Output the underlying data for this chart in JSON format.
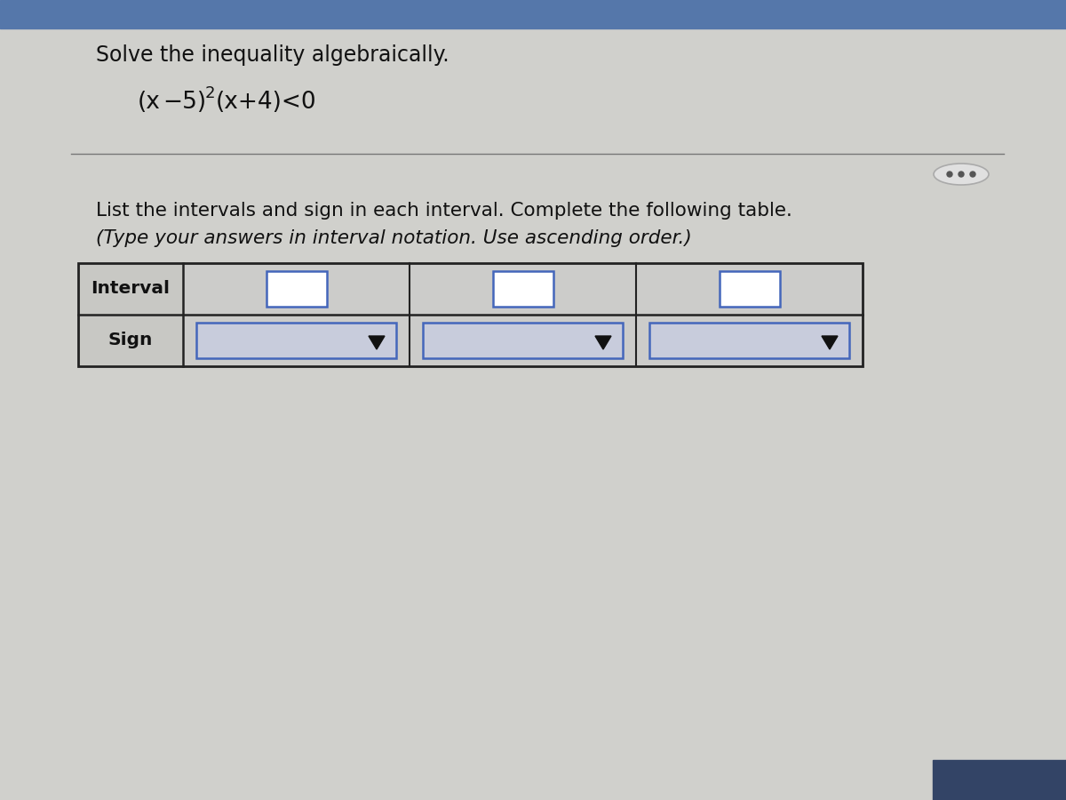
{
  "title_line1": "Solve the inequality algebraically.",
  "equation_text": "(x−5)²(x+4)<0",
  "instruction_line1": "List the intervals and sign in each interval. Complete the following table.",
  "instruction_line2": "(Type your answers in interval notation. Use ascending order.)",
  "num_input_cols": 3,
  "bg_color": "#d0d0cc",
  "white_bg": "#ffffff",
  "table_border_color": "#222222",
  "input_border_color": "#4466bb",
  "dropdown_bg": "#c8ccdc",
  "header_bg": "#c8c8c4",
  "cell_bg": "#ccccca",
  "text_color": "#111111",
  "separator_color": "#777777",
  "dots_border": "#aaaaaa",
  "dots_fill": "#e0e0e0",
  "dot_color": "#555555",
  "arrow_color": "#111111",
  "bottom_bar_color": "#334466",
  "top_bar_color": "#5577aa"
}
